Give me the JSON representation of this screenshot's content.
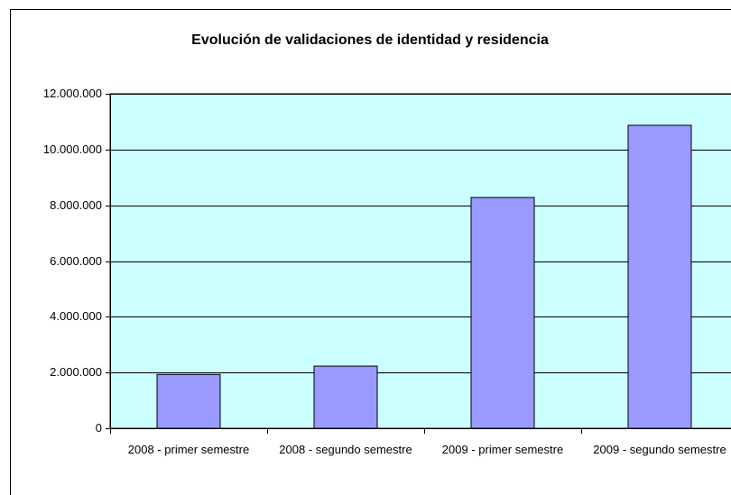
{
  "chart_data": {
    "type": "bar",
    "title": "Evolución de validaciones de identidad y residencia",
    "categories": [
      "2008 - primer semestre",
      "2008 - segundo semestre",
      "2009 - primer semestre",
      "2009 - segundo semestre"
    ],
    "values": [
      1930000,
      2230000,
      8280000,
      10870000
    ],
    "color": "#9999ff",
    "ylim": [
      0,
      12000000
    ],
    "yticks": [
      0,
      {
        "value": 2000000,
        "label": "2.000.000"
      },
      {
        "value": 4000000,
        "label": "4.000.000"
      },
      {
        "value": 6000000,
        "label": "6.000.000"
      },
      {
        "value": 8000000,
        "label": "8.000.000"
      },
      {
        "value": 10000000,
        "label": "10.000.000"
      },
      {
        "value": 12000000,
        "label": "12.000.000"
      }
    ],
    "grid": true
  }
}
